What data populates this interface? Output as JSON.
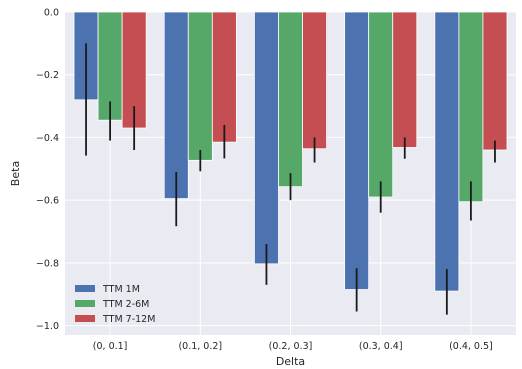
{
  "chart_data": {
    "type": "bar",
    "xlabel": "Delta",
    "ylabel": "Beta",
    "ylim": [
      -1.03,
      0.0
    ],
    "yticks": [
      0.0,
      -0.2,
      -0.4,
      -0.6,
      -0.8,
      -1.0
    ],
    "ytick_labels": [
      "0.0",
      "−0.2",
      "−0.4",
      "−0.6",
      "−0.8",
      "−1.0"
    ],
    "grid": true,
    "legend_position": "bottom-left",
    "categories": [
      "(0, 0.1]",
      "(0.1, 0.2]",
      "(0.2, 0.3]",
      "(0.3, 0.4]",
      "(0.4, 0.5]"
    ],
    "series": [
      {
        "name": "TTM 1M",
        "color": "#4c72b0",
        "values": [
          -0.28,
          -0.595,
          -0.803,
          -0.885,
          -0.89
        ],
        "error_low": [
          -0.458,
          -0.683,
          -0.87,
          -0.955,
          -0.965
        ],
        "error_high": [
          -0.1,
          -0.51,
          -0.74,
          -0.817,
          -0.82
        ]
      },
      {
        "name": "TTM 2-6M",
        "color": "#55a868",
        "values": [
          -0.345,
          -0.473,
          -0.557,
          -0.59,
          -0.605
        ],
        "error_low": [
          -0.41,
          -0.508,
          -0.6,
          -0.64,
          -0.665
        ],
        "error_high": [
          -0.285,
          -0.44,
          -0.514,
          -0.54,
          -0.54
        ]
      },
      {
        "name": "TTM 7-12M",
        "color": "#c44e52",
        "values": [
          -0.37,
          -0.415,
          -0.436,
          -0.432,
          -0.44
        ],
        "error_low": [
          -0.44,
          -0.467,
          -0.48,
          -0.468,
          -0.48
        ],
        "error_high": [
          -0.3,
          -0.36,
          -0.4,
          -0.4,
          -0.41
        ]
      }
    ]
  }
}
